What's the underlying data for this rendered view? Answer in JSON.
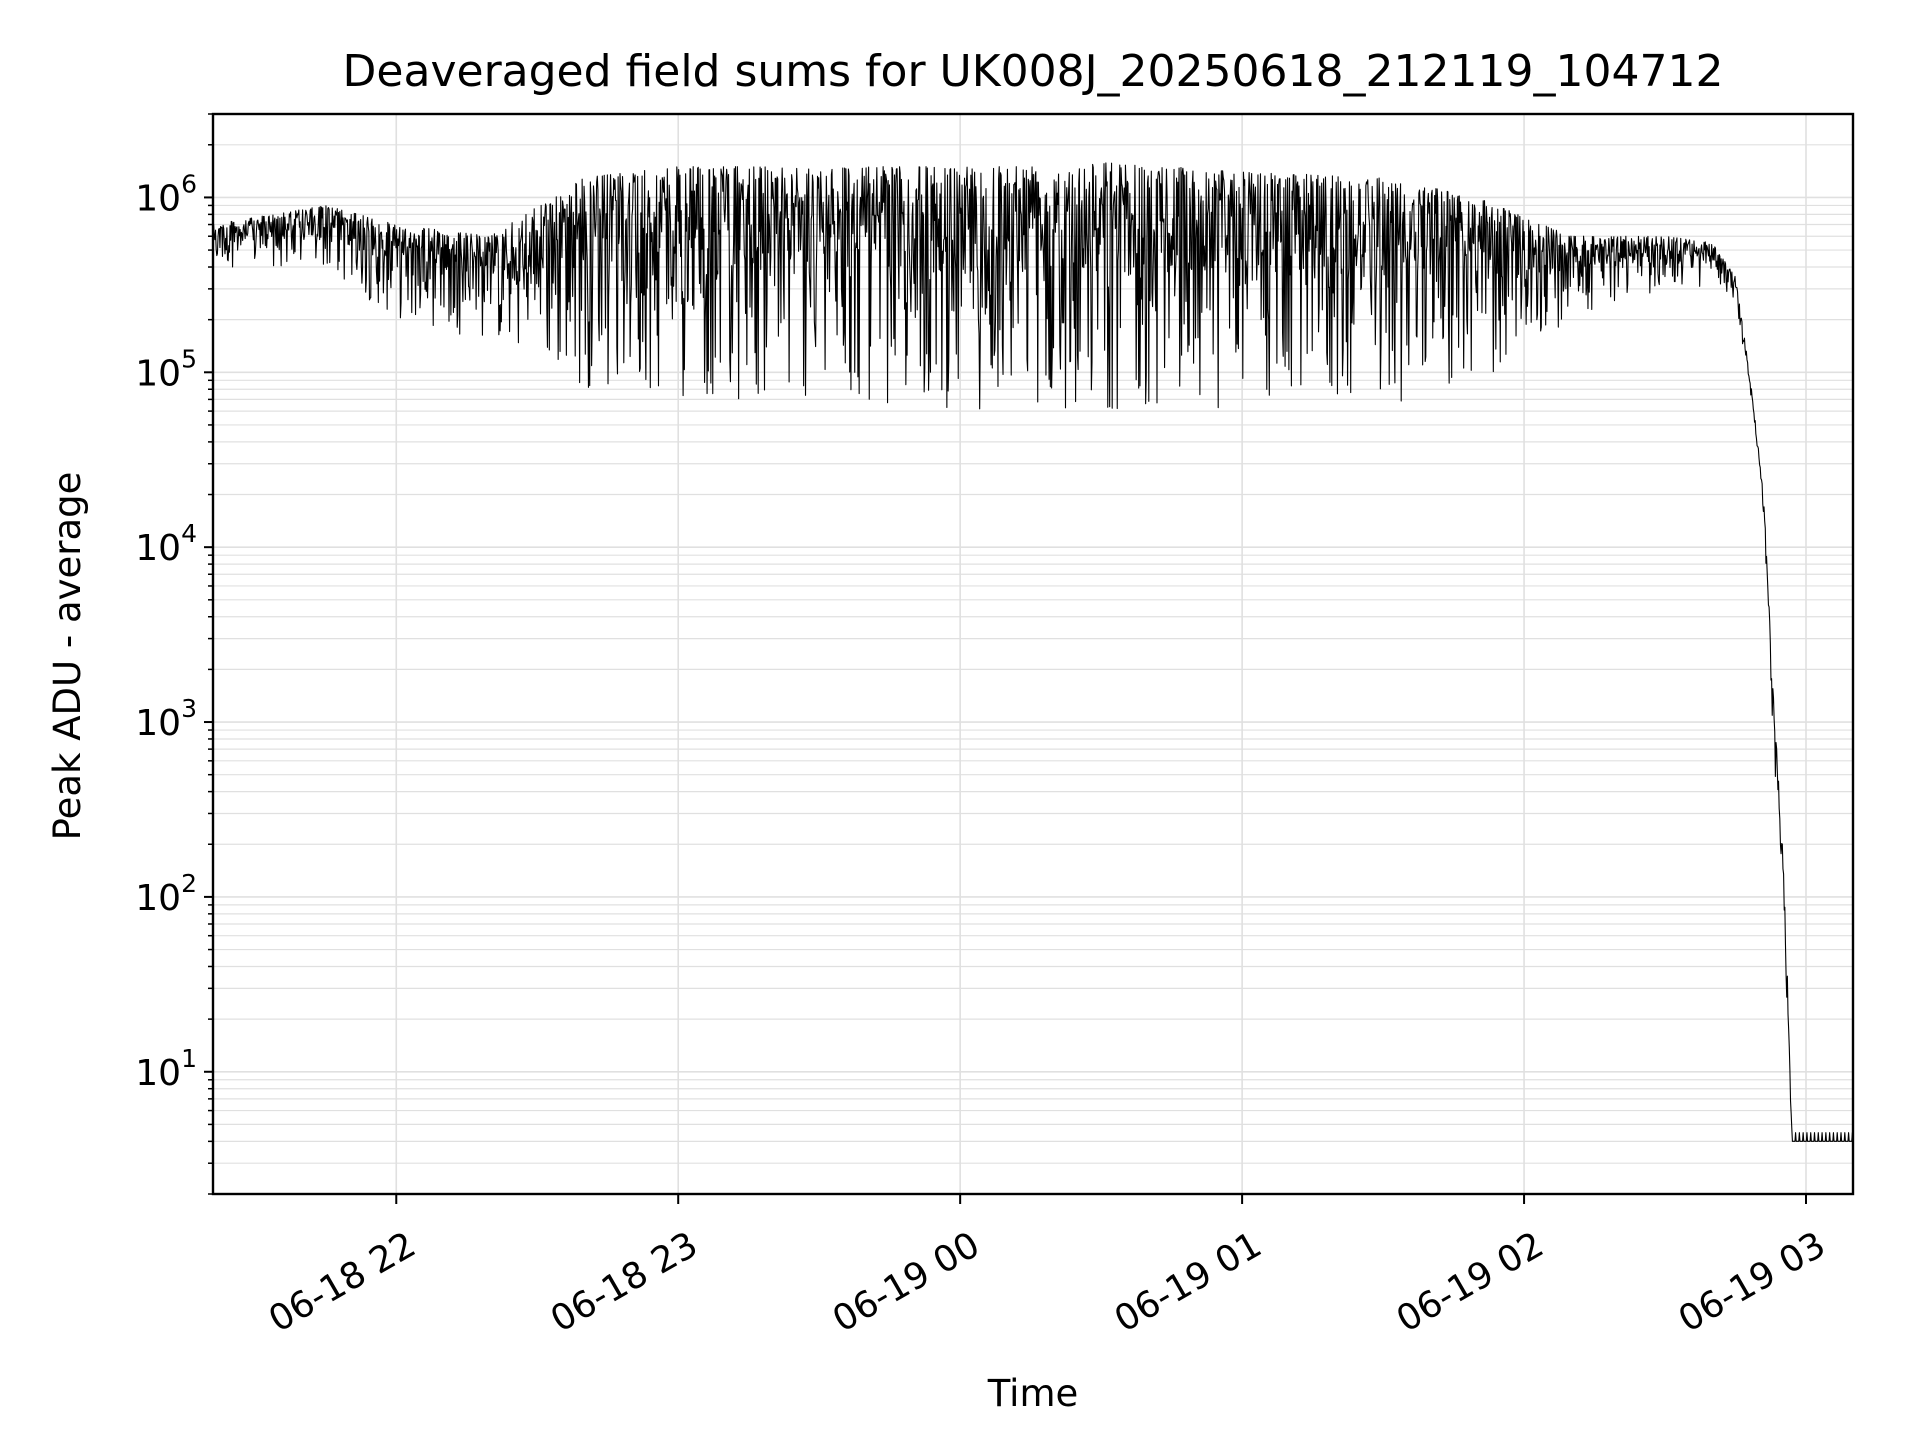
{
  "chart_data": {
    "type": "line",
    "title": "Deaveraged field sums for UK008J_20250618_212119_104712",
    "xlabel": "Time",
    "ylabel": "Peak ADU - average",
    "x_ticks": [
      "06-18 22",
      "06-18 23",
      "06-19 00",
      "06-19 01",
      "06-19 02",
      "06-19 03"
    ],
    "y_scale": "log",
    "y_ticks": [
      {
        "base": "10",
        "exp": "1"
      },
      {
        "base": "10",
        "exp": "2"
      },
      {
        "base": "10",
        "exp": "3"
      },
      {
        "base": "10",
        "exp": "4"
      },
      {
        "base": "10",
        "exp": "5"
      },
      {
        "base": "10",
        "exp": "6"
      }
    ],
    "xlim": [
      "2025-06-18 21:21",
      "2025-06-19 03:10"
    ],
    "ylim": [
      2,
      3000000
    ],
    "grid": true,
    "line_color": "#000000",
    "grid_color": "#e0e0e0",
    "series_envelope": {
      "x": [
        "2025-06-18 21:21",
        "2025-06-18 21:45",
        "2025-06-18 22:00",
        "2025-06-18 22:20",
        "2025-06-18 22:40",
        "2025-06-18 23:00",
        "2025-06-18 23:30",
        "2025-06-19 00:00",
        "2025-06-19 00:30",
        "2025-06-19 01:00",
        "2025-06-19 01:30",
        "2025-06-19 01:50",
        "2025-06-19 02:10",
        "2025-06-19 02:30",
        "2025-06-19 02:40",
        "2025-06-19 02:45",
        "2025-06-19 02:48",
        "2025-06-19 02:51",
        "2025-06-19 02:53",
        "2025-06-19 02:55",
        "2025-06-19 02:56",
        "2025-06-19 02:57",
        "2025-06-19 03:10"
      ],
      "upper": [
        700000,
        900000,
        700000,
        600000,
        1300000,
        1500000,
        1500000,
        1500000,
        1600000,
        1400000,
        1300000,
        1000000,
        600000,
        600000,
        550000,
        350000,
        100000,
        20000,
        1500,
        200,
        40,
        4,
        4
      ],
      "lower": [
        400000,
        380000,
        200000,
        150000,
        80000,
        70000,
        65000,
        60000,
        60000,
        60000,
        65000,
        80000,
        200000,
        300000,
        300000,
        250000,
        80000,
        15000,
        800,
        100,
        20,
        4,
        4
      ]
    }
  }
}
